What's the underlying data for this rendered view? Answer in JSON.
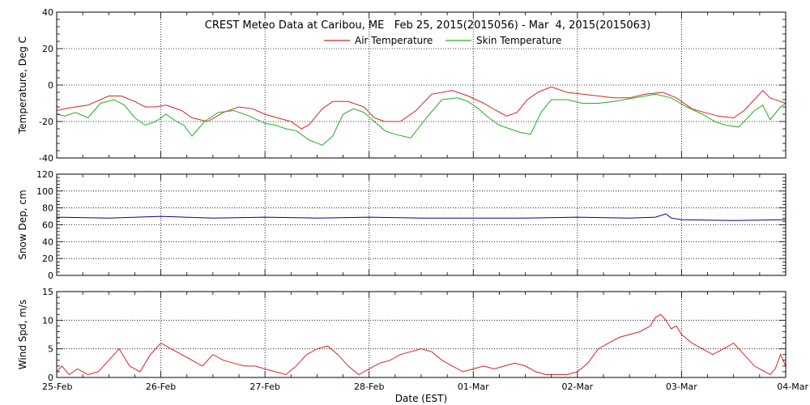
{
  "chart_data": [
    {
      "type": "line",
      "title": "CREST Meteo Data at Caribou, ME   Feb 25, 2015(2015056) - Mar  4, 2015(2015063)",
      "ylabel": "Temperature, Deg C",
      "ylim": [
        -40,
        40
      ],
      "yticks": [
        -40,
        -20,
        0,
        20,
        40
      ],
      "legend": "top-center",
      "series": [
        {
          "name": "Air Temperature",
          "color": "#e02020",
          "x": [
            0,
            0.08,
            0.18,
            0.3,
            0.42,
            0.5,
            0.62,
            0.75,
            0.85,
            0.95,
            1.05,
            1.2,
            1.3,
            1.45,
            1.6,
            1.75,
            1.88,
            2.0,
            2.12,
            2.25,
            2.35,
            2.42,
            2.55,
            2.65,
            2.8,
            2.95,
            3.05,
            3.15,
            3.3,
            3.45,
            3.6,
            3.8,
            3.95,
            4.1,
            4.22,
            4.32,
            4.42,
            4.52,
            4.62,
            4.75,
            4.9,
            5.05,
            5.2,
            5.35,
            5.5,
            5.65,
            5.82,
            5.95,
            6.1,
            6.22,
            6.35,
            6.5,
            6.6,
            6.7,
            6.78,
            6.85,
            6.95,
            7.0
          ],
          "y": [
            -14,
            -13,
            -12,
            -11,
            -8,
            -6,
            -6,
            -9,
            -12,
            -12,
            -11,
            -14,
            -18,
            -20,
            -15,
            -12,
            -13,
            -16,
            -18,
            -20,
            -24,
            -22,
            -13,
            -9,
            -9,
            -12,
            -18,
            -20,
            -20,
            -14,
            -5,
            -3,
            -6,
            -10,
            -14,
            -17,
            -15,
            -8,
            -4,
            -1,
            -4,
            -5,
            -6,
            -7,
            -7,
            -5,
            -4,
            -7,
            -13,
            -15,
            -17,
            -18,
            -14,
            -8,
            -3,
            -7,
            -9,
            -10
          ]
        },
        {
          "name": "Skin Temperature",
          "color": "#20b020",
          "x": [
            0,
            0.08,
            0.18,
            0.3,
            0.42,
            0.55,
            0.65,
            0.75,
            0.85,
            0.95,
            1.05,
            1.15,
            1.22,
            1.3,
            1.42,
            1.55,
            1.7,
            1.85,
            2.0,
            2.1,
            2.2,
            2.3,
            2.42,
            2.55,
            2.65,
            2.75,
            2.85,
            2.95,
            3.05,
            3.15,
            3.25,
            3.4,
            3.55,
            3.7,
            3.85,
            3.95,
            4.05,
            4.15,
            4.25,
            4.35,
            4.45,
            4.55,
            4.65,
            4.75,
            4.9,
            5.05,
            5.2,
            5.35,
            5.55,
            5.75,
            5.9,
            6.05,
            6.2,
            6.32,
            6.42,
            6.55,
            6.7,
            6.78,
            6.85,
            6.95,
            7.0
          ],
          "y": [
            -16,
            -17,
            -15,
            -18,
            -10,
            -8,
            -11,
            -18,
            -22,
            -20,
            -16,
            -20,
            -22,
            -28,
            -20,
            -15,
            -14,
            -17,
            -21,
            -22,
            -24,
            -25,
            -30,
            -33,
            -28,
            -16,
            -13,
            -15,
            -20,
            -25,
            -27,
            -29,
            -18,
            -8,
            -7,
            -9,
            -13,
            -18,
            -22,
            -24,
            -26,
            -27,
            -15,
            -8,
            -8,
            -10,
            -10,
            -9,
            -7,
            -5,
            -7,
            -12,
            -16,
            -20,
            -22,
            -23,
            -14,
            -11,
            -19,
            -12,
            -10
          ]
        }
      ]
    },
    {
      "type": "line",
      "ylabel": "Snow Dep, cm",
      "ylim": [
        0,
        120
      ],
      "yticks": [
        0,
        20,
        40,
        60,
        80,
        100,
        120
      ],
      "series": [
        {
          "color": "#0000a0",
          "x": [
            0,
            0.5,
            1.0,
            1.5,
            2.0,
            2.5,
            3.0,
            3.5,
            4.0,
            4.5,
            5.0,
            5.5,
            5.75,
            5.85,
            5.9,
            6.0,
            6.5,
            7.0
          ],
          "y": [
            69,
            68,
            70,
            68,
            69,
            68,
            69,
            68,
            68,
            68,
            69,
            68,
            69,
            73,
            68,
            66,
            65,
            66
          ]
        }
      ]
    },
    {
      "type": "line",
      "ylabel": "Wind Spd, m/s",
      "xlabel": "Date (EST)",
      "ylim": [
        0,
        15
      ],
      "yticks": [
        0,
        5,
        10,
        15
      ],
      "x_tick_labels": [
        "25-Feb",
        "26-Feb",
        "27-Feb",
        "28-Feb",
        "01-Mar",
        "02-Mar",
        "03-Mar",
        "04-Mar"
      ],
      "series": [
        {
          "color": "#e02020",
          "x": [
            0,
            0.05,
            0.12,
            0.2,
            0.3,
            0.4,
            0.5,
            0.6,
            0.7,
            0.8,
            0.9,
            1.0,
            1.05,
            1.1,
            1.2,
            1.3,
            1.4,
            1.5,
            1.6,
            1.7,
            1.8,
            1.9,
            2.0,
            2.1,
            2.2,
            2.3,
            2.4,
            2.5,
            2.6,
            2.7,
            2.8,
            2.9,
            3.0,
            3.1,
            3.2,
            3.3,
            3.4,
            3.5,
            3.6,
            3.7,
            3.8,
            3.9,
            4.0,
            4.1,
            4.2,
            4.3,
            4.4,
            4.5,
            4.6,
            4.7,
            4.8,
            4.9,
            5.0,
            5.1,
            5.2,
            5.3,
            5.4,
            5.5,
            5.6,
            5.7,
            5.75,
            5.8,
            5.85,
            5.9,
            5.95,
            6.0,
            6.1,
            6.2,
            6.3,
            6.4,
            6.5,
            6.6,
            6.7,
            6.8,
            6.85,
            6.9,
            6.95,
            7.0
          ],
          "y": [
            1,
            2,
            0.5,
            1.5,
            0.5,
            1,
            3,
            5,
            2,
            1,
            4,
            6,
            5.5,
            5,
            4,
            3,
            2,
            4,
            3,
            2.5,
            2,
            2,
            1.5,
            1,
            0.5,
            2,
            4,
            5,
            5.5,
            4,
            2,
            0.5,
            1.5,
            2.5,
            3,
            4,
            4.5,
            5,
            4.5,
            3,
            2,
            1,
            1.5,
            2,
            1.5,
            2,
            2.5,
            2,
            1,
            0.5,
            0.5,
            0.5,
            1,
            2.5,
            5,
            6,
            7,
            7.5,
            8,
            9,
            10.5,
            11,
            10,
            8.5,
            9,
            7.5,
            6,
            5,
            4,
            5,
            6,
            4,
            2,
            1,
            0.5,
            1.5,
            4,
            2
          ]
        }
      ]
    }
  ]
}
